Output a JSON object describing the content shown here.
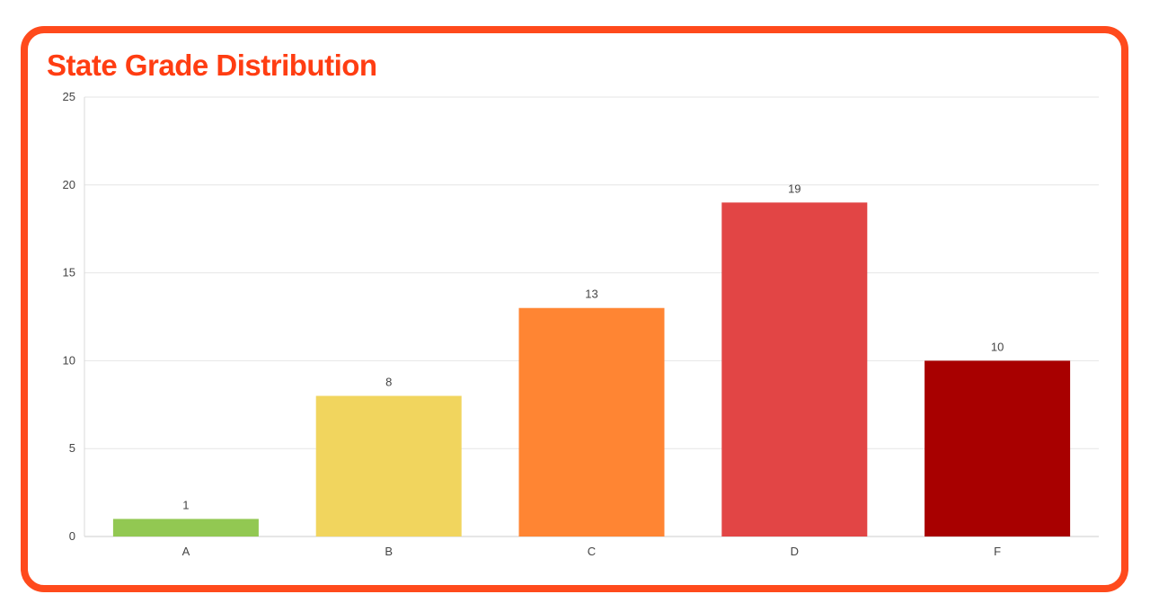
{
  "chart_data": {
    "type": "bar",
    "title": "State Grade Distribution",
    "categories": [
      "A",
      "B",
      "C",
      "D",
      "F"
    ],
    "values": [
      1,
      8,
      13,
      19,
      10
    ],
    "colors": [
      "#92c852",
      "#f1d55e",
      "#ff8533",
      "#e24545",
      "#a80000"
    ],
    "ylim": [
      0,
      25
    ],
    "yticks": [
      0,
      5,
      10,
      15,
      20,
      25
    ],
    "grid": true,
    "legend": "none",
    "xlabel": "",
    "ylabel": ""
  },
  "colors": {
    "border": "#ff4a1c",
    "title": "#ff3d12",
    "gridline": "#e6e6e6",
    "text": "#444444"
  }
}
